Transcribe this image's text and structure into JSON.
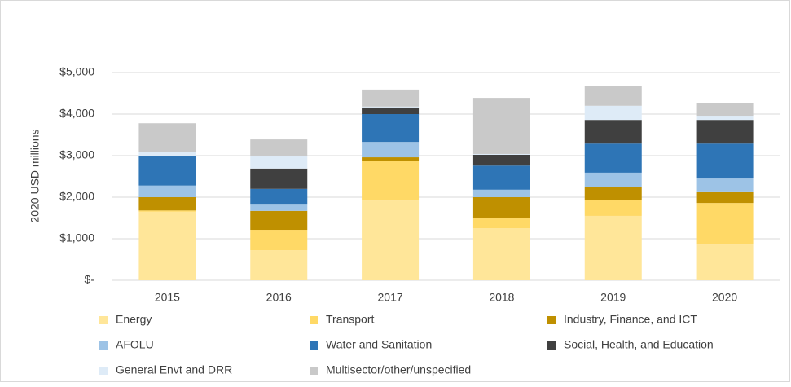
{
  "chart_data": {
    "type": "stacked_bar",
    "y_axis_label": "2020 USD millions",
    "categories": [
      "2015",
      "2016",
      "2017",
      "2018",
      "2019",
      "2020"
    ],
    "series": [
      {
        "name": "Energy",
        "color": "#ffe699",
        "values": [
          1650,
          725,
          1920,
          1255,
          1550,
          860
        ]
      },
      {
        "name": "Transport",
        "color": "#ffd966",
        "values": [
          30,
          490,
          960,
          255,
          390,
          1000
        ]
      },
      {
        "name": "Industry, Finance, and ICT",
        "color": "#bf9000",
        "values": [
          320,
          455,
          80,
          490,
          300,
          260
        ]
      },
      {
        "name": "AFOLU",
        "color": "#9dc3e6",
        "values": [
          280,
          150,
          370,
          180,
          350,
          330
        ]
      },
      {
        "name": "Water and Sanitation",
        "color": "#2e75b6",
        "values": [
          720,
          380,
          670,
          580,
          700,
          840
        ]
      },
      {
        "name": "Social, Health, and Education",
        "color": "#404040",
        "values": [
          0,
          490,
          160,
          260,
          570,
          570
        ]
      },
      {
        "name": "General Envt and DRR",
        "color": "#deebf7",
        "values": [
          80,
          290,
          20,
          20,
          340,
          100
        ]
      },
      {
        "name": "Multisector/other/unspecified",
        "color": "#c9c9c9",
        "values": [
          700,
          410,
          410,
          1350,
          470,
          310
        ]
      }
    ],
    "ylim": [
      0,
      5000
    ],
    "yticks": [
      {
        "value": 0,
        "label": "$-"
      },
      {
        "value": 1000,
        "label": "$1,000"
      },
      {
        "value": 2000,
        "label": "$2,000"
      },
      {
        "value": 3000,
        "label": "$3,000"
      },
      {
        "value": 4000,
        "label": "$4,000"
      },
      {
        "value": 5000,
        "label": "$5,000"
      }
    ],
    "grid": true
  }
}
